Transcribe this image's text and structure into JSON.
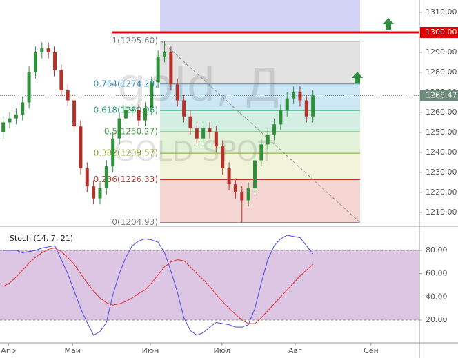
{
  "chart_data": [
    {
      "type": "candlestick",
      "watermark": [
        "gold, Д",
        "GOLD SPOT"
      ],
      "x": [
        1,
        3,
        5,
        7,
        9,
        11,
        13,
        15,
        17,
        19,
        21,
        23,
        25,
        27,
        29,
        31,
        33,
        35,
        37,
        39,
        41,
        43,
        45,
        47,
        49,
        51,
        53,
        55,
        57,
        59,
        61,
        63,
        65,
        67,
        69,
        71,
        73,
        75,
        77,
        79,
        81,
        83,
        85,
        87,
        89,
        91,
        93,
        95,
        97
      ],
      "open": [
        1250,
        1255,
        1257,
        1259,
        1265,
        1280,
        1290,
        1292,
        1290,
        1281,
        1271,
        1266,
        1253,
        1232,
        1223,
        1217,
        1222,
        1233,
        1247,
        1257,
        1261,
        1261,
        1256,
        1262,
        1275,
        1288,
        1290,
        1274,
        1266,
        1258,
        1252,
        1247,
        1252,
        1250,
        1243,
        1232,
        1224,
        1220,
        1216,
        1222,
        1236,
        1244,
        1249,
        1254,
        1261,
        1267,
        1270,
        1266,
        1258
      ],
      "high": [
        1258,
        1260,
        1262,
        1268,
        1283,
        1293,
        1295,
        1295,
        1293,
        1284,
        1274,
        1269,
        1256,
        1235,
        1226,
        1225,
        1236,
        1250,
        1260,
        1264,
        1264,
        1264,
        1265,
        1278,
        1291,
        1295.6,
        1293,
        1277,
        1269,
        1261,
        1255,
        1255,
        1255,
        1253,
        1246,
        1235,
        1227,
        1223,
        1225,
        1239,
        1247,
        1252,
        1257,
        1264,
        1270,
        1273,
        1273,
        1269,
        1271
      ],
      "low": [
        1247,
        1252,
        1254,
        1256,
        1262,
        1277,
        1287,
        1287,
        1278,
        1268,
        1263,
        1250,
        1229,
        1220,
        1214,
        1214,
        1219,
        1230,
        1244,
        1254,
        1258,
        1253,
        1253,
        1259,
        1272,
        1285,
        1271,
        1263,
        1255,
        1249,
        1244,
        1244,
        1247,
        1240,
        1229,
        1221,
        1217,
        1204.93,
        1213,
        1219,
        1233,
        1241,
        1246,
        1251,
        1258,
        1264,
        1263,
        1255,
        1255
      ],
      "close": [
        1255,
        1257,
        1259,
        1265,
        1280,
        1290,
        1292,
        1290,
        1281,
        1271,
        1266,
        1253,
        1232,
        1223,
        1217,
        1222,
        1233,
        1247,
        1257,
        1261,
        1261,
        1256,
        1262,
        1275,
        1288,
        1290,
        1274,
        1266,
        1258,
        1252,
        1247,
        1252,
        1250,
        1243,
        1232,
        1224,
        1220,
        1216,
        1222,
        1236,
        1244,
        1249,
        1254,
        1261,
        1267,
        1270,
        1266,
        1258,
        1268.47
      ],
      "up_color": "#2f8f3a",
      "down_color": "#b3332b",
      "xlim": [
        0,
        130
      ],
      "ylim": [
        1203.4,
        1316.2
      ],
      "yticks": [
        {
          "value": 1210,
          "label": "1210.00"
        },
        {
          "value": 1220,
          "label": "1220.00"
        },
        {
          "value": 1230,
          "label": "1230.00"
        },
        {
          "value": 1240,
          "label": "1240.00"
        },
        {
          "value": 1250,
          "label": "1250.00"
        },
        {
          "value": 1260,
          "label": "1260.00"
        },
        {
          "value": 1270,
          "label": "1270.00"
        },
        {
          "value": 1280,
          "label": "1280.00"
        },
        {
          "value": 1290,
          "label": "1290.00"
        },
        {
          "value": 1310,
          "label": "1310.00"
        }
      ],
      "fib_levels": [
        {
          "value": 1295.6,
          "label": "1(1295.60)",
          "color": "#808080",
          "fill": "#e2e2e2"
        },
        {
          "value": 1274.2,
          "label": "0.764(1274.20)",
          "color": "#3a8fc4",
          "fill": "#cde7f4"
        },
        {
          "value": 1260.96,
          "label": "0.618(1260.96)",
          "color": "#2aa37a",
          "fill": "#d3efe4"
        },
        {
          "value": 1250.27,
          "label": "0.5(1250.27)",
          "color": "#3c9a3c",
          "fill": "#e2f2d8"
        },
        {
          "value": 1239.57,
          "label": "0.382(1239.57)",
          "color": "#8aa332",
          "fill": "#f1f4da"
        },
        {
          "value": 1226.33,
          "label": "0.236(1226.33)",
          "color": "#c0392b",
          "fill": "#f5d6d2"
        },
        {
          "value": 1204.93,
          "label": "0(1204.93)",
          "color": "#808080"
        }
      ],
      "horizontal_line": {
        "value": 1300,
        "label": "1300.00",
        "color": "#e00000"
      },
      "last_price": {
        "value": 1268.47,
        "label": "1268.47",
        "color": "#6f8b7c"
      }
    },
    {
      "type": "line",
      "title": "Stoch (14, 7, 21)",
      "series": [
        {
          "color": "#4a4ae0",
          "values": [
            80,
            80,
            80,
            78,
            79,
            80,
            82,
            83,
            84,
            72,
            60,
            45,
            30,
            18,
            7,
            10,
            18,
            42,
            60,
            74,
            84,
            88,
            90,
            89,
            87,
            78,
            62,
            44,
            22,
            11,
            7,
            9,
            14,
            18,
            17,
            16,
            14,
            14,
            16,
            30,
            52,
            72,
            84,
            90,
            93,
            92,
            91,
            84,
            77
          ]
        },
        {
          "color": "#e03030",
          "values": [
            49,
            52,
            57,
            63,
            69,
            74,
            78,
            81,
            82,
            79,
            74,
            68,
            60,
            52,
            45,
            39,
            35,
            33,
            34,
            36,
            39,
            43,
            46,
            52,
            59,
            66,
            70,
            72,
            71,
            66,
            60,
            55,
            49,
            42,
            36,
            30,
            25,
            20,
            17,
            17,
            22,
            28,
            34,
            40,
            46,
            52,
            58,
            63,
            68
          ]
        }
      ],
      "band": [
        20,
        80
      ],
      "band_color": "#dcc6e4",
      "xlim": [
        0,
        130
      ],
      "ylim": [
        0.4,
        99.6
      ],
      "yticks": [
        {
          "value": 20,
          "label": "20.00"
        },
        {
          "value": 40,
          "label": "40.00"
        },
        {
          "value": 60,
          "label": "60.00"
        },
        {
          "value": 80,
          "label": "80.00"
        }
      ],
      "xticks": [
        {
          "value": 2.6,
          "label": "Апр"
        },
        {
          "value": 22.5,
          "label": "Май"
        },
        {
          "value": 46.6,
          "label": "Июн"
        },
        {
          "value": 68.8,
          "label": "Июл"
        },
        {
          "value": 91.5,
          "label": "Авг"
        },
        {
          "value": 115,
          "label": "Сен"
        }
      ]
    }
  ]
}
